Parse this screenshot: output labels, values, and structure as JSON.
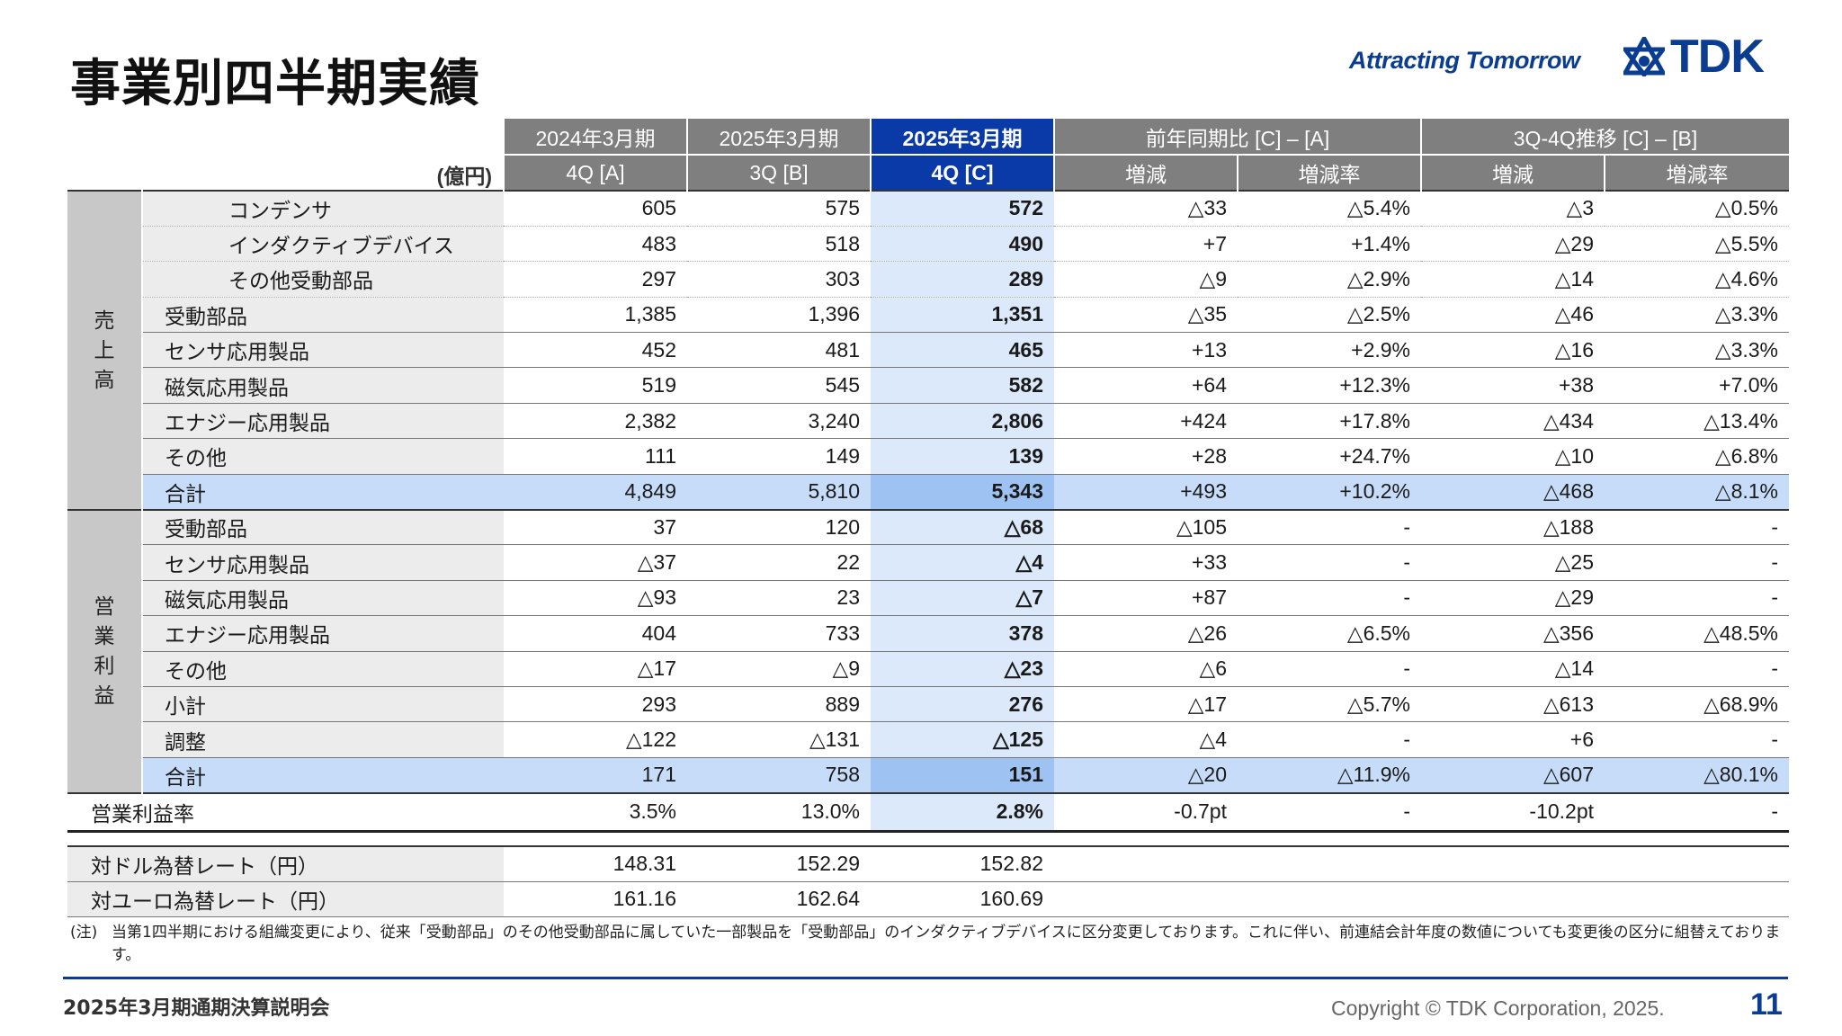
{
  "header": {
    "title": "事業別四半期実績",
    "slogan": "Attracting Tomorrow",
    "logo_text": "TDK",
    "brand_color": "#0a3d91"
  },
  "table": {
    "unit": "(億円)",
    "col_headers_top": [
      "2024年3月期",
      "2025年3月期",
      "2025年3月期",
      "前年同期比 [C] – [A]",
      "3Q-4Q推移 [C] – [B]"
    ],
    "col_headers_bottom": [
      "4Q [A]",
      "3Q [B]",
      "4Q [C]",
      "増減",
      "増減率",
      "増減",
      "増減率"
    ],
    "sales_group_label": "売\n上\n高",
    "sales_rows": [
      {
        "label": "コンデンサ",
        "values": [
          "605",
          "575",
          "572",
          "△33",
          "△5.4%",
          "△3",
          "△0.5%"
        ]
      },
      {
        "label": "インダクティブデバイス",
        "values": [
          "483",
          "518",
          "490",
          "+7",
          "+1.4%",
          "△29",
          "△5.5%"
        ]
      },
      {
        "label": "その他受動部品",
        "values": [
          "297",
          "303",
          "289",
          "△9",
          "△2.9%",
          "△14",
          "△4.6%"
        ]
      },
      {
        "label": "受動部品",
        "values": [
          "1,385",
          "1,396",
          "1,351",
          "△35",
          "△2.5%",
          "△46",
          "△3.3%"
        ]
      },
      {
        "label": "センサ応用製品",
        "values": [
          "452",
          "481",
          "465",
          "+13",
          "+2.9%",
          "△16",
          "△3.3%"
        ]
      },
      {
        "label": "磁気応用製品",
        "values": [
          "519",
          "545",
          "582",
          "+64",
          "+12.3%",
          "+38",
          "+7.0%"
        ]
      },
      {
        "label": "エナジー応用製品",
        "values": [
          "2,382",
          "3,240",
          "2,806",
          "+424",
          "+17.8%",
          "△434",
          "△13.4%"
        ]
      },
      {
        "label": "その他",
        "values": [
          "111",
          "149",
          "139",
          "+28",
          "+24.7%",
          "△10",
          "△6.8%"
        ]
      },
      {
        "label": "合計",
        "values": [
          "4,849",
          "5,810",
          "5,343",
          "+493",
          "+10.2%",
          "△468",
          "△8.1%"
        ]
      }
    ],
    "op_group_label": "営\n業\n利\n益",
    "op_rows": [
      {
        "label": "受動部品",
        "values": [
          "37",
          "120",
          "△68",
          "△105",
          "-",
          "△188",
          "-"
        ]
      },
      {
        "label": "センサ応用製品",
        "values": [
          "△37",
          "22",
          "△4",
          "+33",
          "-",
          "△25",
          "-"
        ]
      },
      {
        "label": "磁気応用製品",
        "values": [
          "△93",
          "23",
          "△7",
          "+87",
          "-",
          "△29",
          "-"
        ]
      },
      {
        "label": "エナジー応用製品",
        "values": [
          "404",
          "733",
          "378",
          "△26",
          "△6.5%",
          "△356",
          "△48.5%"
        ]
      },
      {
        "label": "その他",
        "values": [
          "△17",
          "△9",
          "△23",
          "△6",
          "-",
          "△14",
          "-"
        ]
      },
      {
        "label": "小計",
        "values": [
          "293",
          "889",
          "276",
          "△17",
          "△5.7%",
          "△613",
          "△68.9%"
        ]
      },
      {
        "label": "調整",
        "values": [
          "△122",
          "△131",
          "△125",
          "△4",
          "-",
          "+6",
          "-"
        ]
      },
      {
        "label": "合計",
        "values": [
          "171",
          "758",
          "151",
          "△20",
          "△11.9%",
          "△607",
          "△80.1%"
        ]
      }
    ],
    "margin_row": {
      "label": "営業利益率",
      "values": [
        "3.5%",
        "13.0%",
        "2.8%",
        "-0.7pt",
        "-",
        "-10.2pt",
        "-"
      ]
    },
    "fx_rows": [
      {
        "label": "対ドル為替レート（円）",
        "values": [
          "148.31",
          "152.29",
          "152.82"
        ]
      },
      {
        "label": "対ユーロ為替レート（円）",
        "values": [
          "161.16",
          "162.64",
          "160.69"
        ]
      }
    ]
  },
  "note": {
    "label": "(注)",
    "text": "当第1四半期における組織変更により、従来「受動部品」のその他受動部品に属していた一部製品を「受動部品」のインダクティブデバイスに区分変更しております。これに伴い、前連結会計年度の数値についても変更後の区分に組替えております。"
  },
  "footer": {
    "event": "2025年3月期通期決算説明会",
    "copyright": "Copyright © TDK Corporation, 2025.",
    "page_number": "11"
  }
}
